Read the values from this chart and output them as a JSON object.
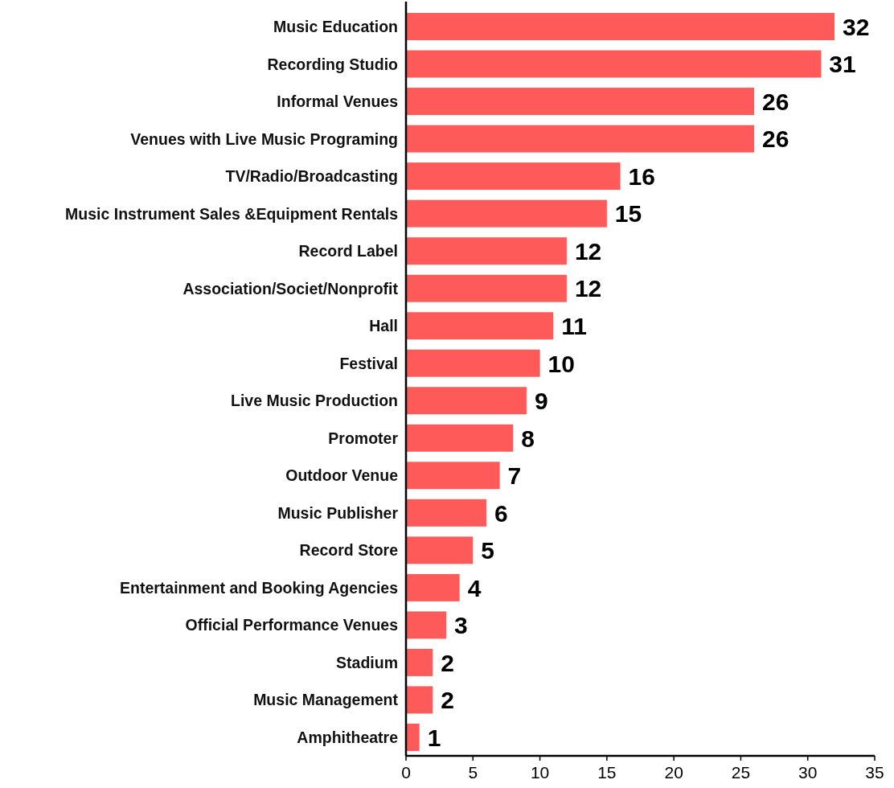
{
  "chart_data": {
    "type": "bar",
    "orientation": "horizontal",
    "categories": [
      "Music Education",
      "Recording Studio",
      "Informal Venues",
      "Venues with Live Music Programing",
      "TV/Radio/Broadcasting",
      "Music Instrument Sales &Equipment Rentals",
      "Record Label",
      "Association/Societ/Nonprofit",
      "Hall",
      "Festival",
      "Live Music Production",
      "Promoter",
      "Outdoor Venue",
      "Music Publisher",
      "Record Store",
      "Entertainment and Booking Agencies",
      "Official Performance Venues",
      "Stadium",
      "Music Management",
      "Amphitheatre"
    ],
    "values": [
      32,
      31,
      26,
      26,
      16,
      15,
      12,
      12,
      11,
      10,
      9,
      8,
      7,
      6,
      5,
      4,
      3,
      2,
      2,
      1
    ],
    "color": "#fe5a5a",
    "xlim": [
      0,
      35
    ],
    "xticks": [
      0,
      5,
      10,
      15,
      20,
      25,
      30,
      35
    ],
    "data_labels": true
  }
}
